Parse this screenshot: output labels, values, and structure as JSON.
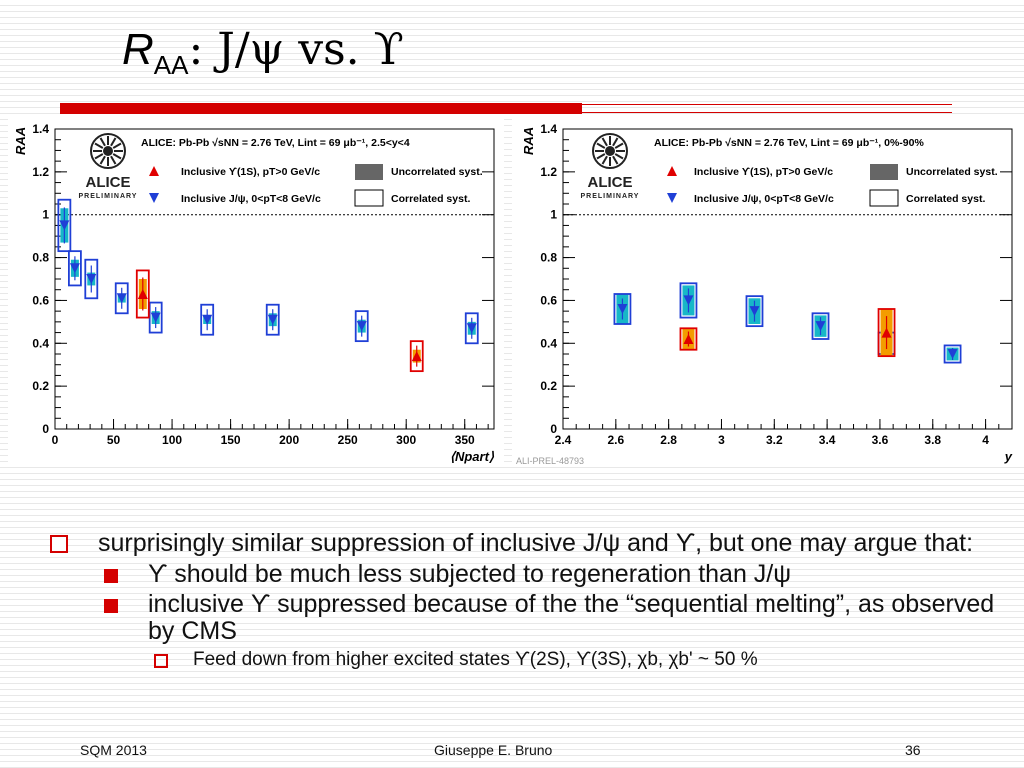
{
  "slide": {
    "title": {
      "r": "R",
      "sub": "AA",
      "rest": ": J/ψ vs. ϒ"
    },
    "bullets": {
      "b1": "surprisingly similar suppression of inclusive J/ψ and ϒ, but one may argue that:",
      "b2": "ϒ should be much less subjected to regeneration than J/ψ",
      "b3": "inclusive ϒ suppressed because of the the “sequential melting”, as observed by CMS",
      "b4": "Feed down from higher excited states ϒ(2S), ϒ(3S), χb, χb' ~ 50 %"
    },
    "footer": {
      "left": "SQM 2013",
      "center": "Giuseppe E. Bruno",
      "right": "36"
    },
    "watermark": "ALI-PREL-48793",
    "colors": {
      "accent": "#d40000",
      "jpsi": "#1f3fd6",
      "upsilon": "#e00000",
      "jpsi_fill": "#17b7c8",
      "upsilon_fill": "#f39c00"
    }
  },
  "chart_data": [
    {
      "type": "scatter",
      "xlabel": "⟨Npart⟩",
      "ylabel": "RAA",
      "xlim": [
        0,
        375
      ],
      "ylim": [
        0,
        1.4
      ],
      "xticks": [
        "0",
        "50",
        "100",
        "150",
        "200",
        "250",
        "300",
        "350"
      ],
      "yticks": [
        "0",
        "0.2",
        "0.4",
        "0.6",
        "0.8",
        "1",
        "1.2",
        "1.4"
      ],
      "reference_line": 1,
      "logo": {
        "name": "ALICE",
        "sub": "PRELIMINARY"
      },
      "legend": {
        "header": "ALICE: Pb-Pb √sNN = 2.76 TeV, Lint = 69 μb⁻¹, 2.5<y<4",
        "entries": [
          "Inclusive ϒ(1S), pT>0 GeV/c",
          "Inclusive J/ψ, 0<pT<8 GeV/c",
          "Uncorrelated syst.",
          "Correlated syst."
        ]
      },
      "series": [
        {
          "name": "Inclusive J/ψ, 0<pT<8 GeV/c",
          "marker": "down-triangle",
          "x": [
            8,
            17,
            31,
            57,
            86,
            130,
            186,
            262,
            356
          ],
          "y": [
            0.95,
            0.75,
            0.7,
            0.61,
            0.52,
            0.51,
            0.51,
            0.48,
            0.47
          ],
          "unc": [
            0.08,
            0.04,
            0.03,
            0.02,
            0.03,
            0.02,
            0.03,
            0.03,
            0.03
          ],
          "corr": [
            0.12,
            0.08,
            0.09,
            0.07,
            0.07,
            0.07,
            0.07,
            0.07,
            0.07
          ]
        },
        {
          "name": "Inclusive ϒ(1S), pT>0 GeV/c",
          "marker": "up-triangle",
          "x": [
            75,
            309
          ],
          "y": [
            0.63,
            0.34
          ],
          "unc": [
            0.07,
            0.03
          ],
          "corr": [
            0.11,
            0.07
          ]
        }
      ]
    },
    {
      "type": "scatter",
      "xlabel": "y",
      "ylabel": "RAA",
      "xlim": [
        2.4,
        4.1
      ],
      "ylim": [
        0,
        1.4
      ],
      "xticks": [
        "2.4",
        "2.6",
        "2.8",
        "3",
        "3.2",
        "3.4",
        "3.6",
        "3.8",
        "4"
      ],
      "yticks": [
        "0",
        "0.2",
        "0.4",
        "0.6",
        "0.8",
        "1",
        "1.2",
        "1.4"
      ],
      "reference_line": 1,
      "logo": {
        "name": "ALICE",
        "sub": "PRELIMINARY"
      },
      "legend": {
        "header": "ALICE: Pb-Pb √sNN = 2.76 TeV, Lint = 69 μb⁻¹, 0%-90%",
        "entries": [
          "Inclusive ϒ(1S), pT>0 GeV/c",
          "Inclusive J/ψ, 0<pT<8 GeV/c",
          "Uncorrelated syst.",
          "Correlated syst."
        ]
      },
      "series": [
        {
          "name": "Inclusive J/ψ, 0<pT<8 GeV/c",
          "marker": "down-triangle",
          "x": [
            2.625,
            2.875,
            3.125,
            3.375,
            3.625,
            3.875
          ],
          "y": [
            0.56,
            0.6,
            0.55,
            0.48,
            0.4,
            0.35
          ],
          "unc": [
            0.07,
            0.07,
            0.06,
            0.05,
            0.04,
            0.03
          ],
          "corr": [
            0.07,
            0.08,
            0.07,
            0.06,
            0.05,
            0.04
          ]
        },
        {
          "name": "Inclusive ϒ(1S), pT>0 GeV/c",
          "marker": "up-triangle",
          "x": [
            2.875,
            3.625
          ],
          "y": [
            0.42,
            0.45
          ],
          "unc": [
            0.05,
            0.11
          ],
          "corr": [
            0.05,
            0.11
          ]
        }
      ]
    }
  ]
}
